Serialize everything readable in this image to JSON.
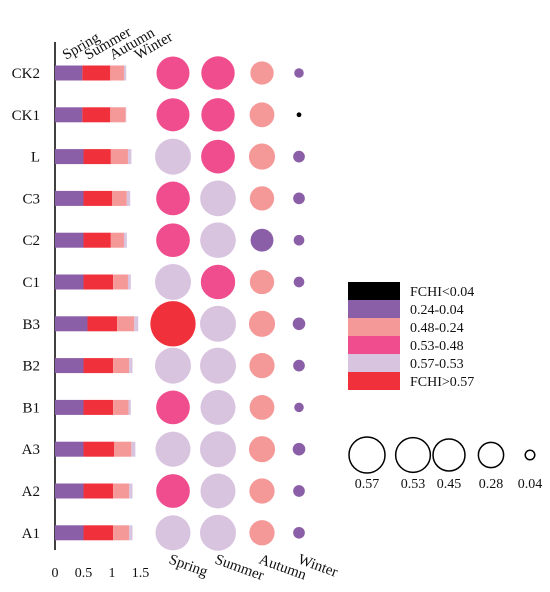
{
  "chart_data": {
    "type": "bar+bubble",
    "rows": [
      "CK2",
      "CK1",
      "L",
      "C3",
      "C2",
      "C1",
      "B3",
      "B2",
      "B1",
      "A3",
      "A2",
      "A1"
    ],
    "seasons": [
      "Spring",
      "Summer",
      "Autumn",
      "Winter"
    ],
    "bar": {
      "xticks": [
        "0",
        "0.5",
        "1",
        "1.5"
      ],
      "xlim": [
        0,
        1.5
      ],
      "series": [
        {
          "name": "Spring",
          "color": "#8b5fa8",
          "values": [
            0.48,
            0.48,
            0.5,
            0.5,
            0.5,
            0.5,
            0.57,
            0.5,
            0.5,
            0.5,
            0.5,
            0.5
          ]
        },
        {
          "name": "Summer",
          "color": "#f0303a",
          "values": [
            0.49,
            0.49,
            0.48,
            0.5,
            0.48,
            0.52,
            0.52,
            0.52,
            0.52,
            0.54,
            0.52,
            0.52
          ]
        },
        {
          "name": "Autumn",
          "color": "#f59898",
          "values": [
            0.24,
            0.27,
            0.3,
            0.26,
            0.23,
            0.26,
            0.3,
            0.28,
            0.27,
            0.3,
            0.28,
            0.28
          ]
        },
        {
          "name": "Winter",
          "color": "#d9c4e0",
          "values": [
            0.04,
            0.01,
            0.06,
            0.06,
            0.05,
            0.05,
            0.07,
            0.06,
            0.04,
            0.07,
            0.06,
            0.06
          ]
        }
      ]
    },
    "bubble": {
      "columns": [
        "Spring",
        "Summer",
        "Autumn",
        "Winter"
      ],
      "values": [
        [
          0.48,
          0.49,
          0.24,
          0.04
        ],
        [
          0.48,
          0.49,
          0.27,
          0.01
        ],
        [
          0.57,
          0.5,
          0.3,
          0.06
        ],
        [
          0.5,
          0.56,
          0.26,
          0.06
        ],
        [
          0.5,
          0.56,
          0.23,
          0.05
        ],
        [
          0.57,
          0.52,
          0.26,
          0.05
        ],
        [
          0.9,
          0.57,
          0.3,
          0.07
        ],
        [
          0.57,
          0.57,
          0.28,
          0.06
        ],
        [
          0.5,
          0.54,
          0.27,
          0.04
        ],
        [
          0.54,
          0.57,
          0.3,
          0.07
        ],
        [
          0.5,
          0.54,
          0.28,
          0.06
        ],
        [
          0.54,
          0.57,
          0.28,
          0.06
        ]
      ]
    },
    "legend": {
      "placement": "right",
      "entries": [
        {
          "label": "FCHI<0.04",
          "color": "#000000"
        },
        {
          "label": "0.24-0.04",
          "color": "#8b5fa8"
        },
        {
          "label": "0.48-0.24",
          "color": "#f59898"
        },
        {
          "label": "0.53-0.48",
          "color": "#f04d8e"
        },
        {
          "label": "0.57-0.53",
          "color": "#d9c4e0"
        },
        {
          "label": "FCHI>0.57",
          "color": "#f0303a"
        }
      ]
    },
    "size_legend": {
      "values": [
        0.57,
        0.53,
        0.45,
        0.28,
        0.04
      ],
      "labels": [
        "0.57",
        "0.53",
        "0.45",
        "0.28",
        "0.04"
      ]
    }
  }
}
